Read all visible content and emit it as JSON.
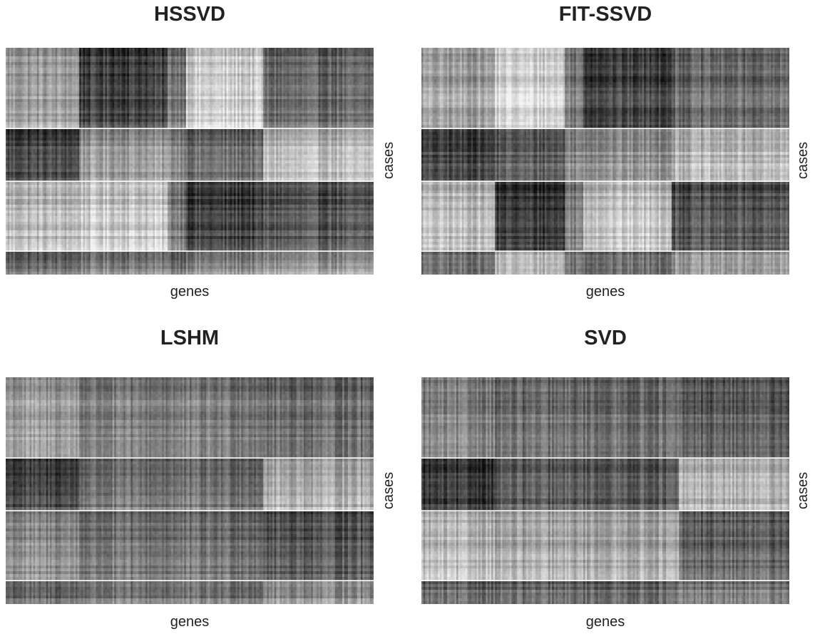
{
  "figure": {
    "background": "#ffffff"
  },
  "chart_data": [
    {
      "type": "heatmap",
      "title": "HSSVD",
      "xlabel": "genes",
      "ylabel": "cases",
      "row_groups": [
        28,
        18,
        24,
        8
      ],
      "column_blocks": [
        {
          "width_fraction": 0.2,
          "levels": [
            0.62,
            0.28,
            0.72,
            0.42
          ]
        },
        {
          "width_fraction": 0.24,
          "levels": [
            0.26,
            0.6,
            0.78,
            0.5
          ]
        },
        {
          "width_fraction": 0.05,
          "levels": [
            0.48,
            0.55,
            0.5,
            0.45
          ]
        },
        {
          "width_fraction": 0.21,
          "levels": [
            0.8,
            0.42,
            0.24,
            0.52
          ]
        },
        {
          "width_fraction": 0.3,
          "levels": [
            0.4,
            0.72,
            0.32,
            0.58
          ]
        }
      ],
      "colormap": "gray",
      "grid": false,
      "separators": "white"
    },
    {
      "type": "heatmap",
      "title": "FIT-SSVD",
      "xlabel": "genes",
      "ylabel": "cases",
      "row_groups": [
        28,
        18,
        24,
        8
      ],
      "column_blocks": [
        {
          "width_fraction": 0.2,
          "levels": [
            0.62,
            0.28,
            0.72,
            0.42
          ]
        },
        {
          "width_fraction": 0.19,
          "levels": [
            0.82,
            0.38,
            0.22,
            0.7
          ]
        },
        {
          "width_fraction": 0.05,
          "levels": [
            0.48,
            0.55,
            0.5,
            0.45
          ]
        },
        {
          "width_fraction": 0.24,
          "levels": [
            0.26,
            0.58,
            0.76,
            0.42
          ]
        },
        {
          "width_fraction": 0.32,
          "levels": [
            0.4,
            0.72,
            0.32,
            0.58
          ]
        }
      ],
      "colormap": "gray",
      "grid": false,
      "separators": "white"
    },
    {
      "type": "heatmap",
      "title": "LSHM",
      "xlabel": "genes",
      "ylabel": "cases",
      "row_groups": [
        28,
        18,
        24,
        8
      ],
      "column_blocks": [
        {
          "width_fraction": 0.2,
          "levels": [
            0.62,
            0.28,
            0.55,
            0.4
          ]
        },
        {
          "width_fraction": 0.5,
          "levels": [
            0.5,
            0.45,
            0.45,
            0.45
          ]
        },
        {
          "width_fraction": 0.3,
          "levels": [
            0.44,
            0.68,
            0.35,
            0.55
          ]
        }
      ],
      "colormap": "gray",
      "grid": false,
      "separators": "white"
    },
    {
      "type": "heatmap",
      "title": "SVD",
      "xlabel": "genes",
      "ylabel": "cases",
      "row_groups": [
        28,
        18,
        24,
        8
      ],
      "column_blocks": [
        {
          "width_fraction": 0.2,
          "levels": [
            0.52,
            0.2,
            0.7,
            0.42
          ]
        },
        {
          "width_fraction": 0.5,
          "levels": [
            0.44,
            0.34,
            0.64,
            0.42
          ]
        },
        {
          "width_fraction": 0.3,
          "levels": [
            0.38,
            0.68,
            0.38,
            0.5
          ]
        }
      ],
      "colormap": "gray",
      "grid": false,
      "separators": "white"
    }
  ]
}
